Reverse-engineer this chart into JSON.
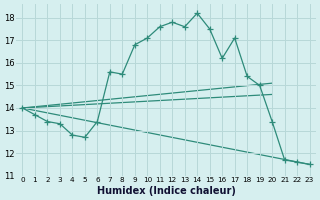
{
  "xlabel": "Humidex (Indice chaleur)",
  "ylabel": "",
  "background_color": "#d6efef",
  "grid_color": "#b8d8d8",
  "line_color": "#2e8b7a",
  "xlim": [
    -0.5,
    23.5
  ],
  "ylim": [
    11,
    18.6
  ],
  "yticks": [
    11,
    12,
    13,
    14,
    15,
    16,
    17,
    18
  ],
  "xticks": [
    0,
    1,
    2,
    3,
    4,
    5,
    6,
    7,
    8,
    9,
    10,
    11,
    12,
    13,
    14,
    15,
    16,
    17,
    18,
    19,
    20,
    21,
    22,
    23
  ],
  "main_x": [
    0,
    1,
    2,
    3,
    4,
    5,
    6,
    7,
    8,
    9,
    10,
    11,
    12,
    13,
    14,
    15,
    16,
    17,
    18,
    19,
    20,
    21,
    22,
    23
  ],
  "main_y": [
    14.0,
    13.7,
    13.4,
    13.3,
    12.8,
    12.7,
    13.4,
    15.6,
    15.5,
    16.8,
    17.1,
    17.6,
    17.8,
    17.6,
    18.2,
    17.5,
    16.2,
    17.1,
    15.4,
    15.0,
    13.4,
    11.7,
    11.6,
    11.5
  ],
  "ref_lines": [
    {
      "x": [
        0,
        20
      ],
      "y": [
        14.0,
        15.1
      ]
    },
    {
      "x": [
        0,
        20
      ],
      "y": [
        14.0,
        14.6
      ]
    },
    {
      "x": [
        0,
        23
      ],
      "y": [
        14.0,
        11.5
      ]
    }
  ]
}
